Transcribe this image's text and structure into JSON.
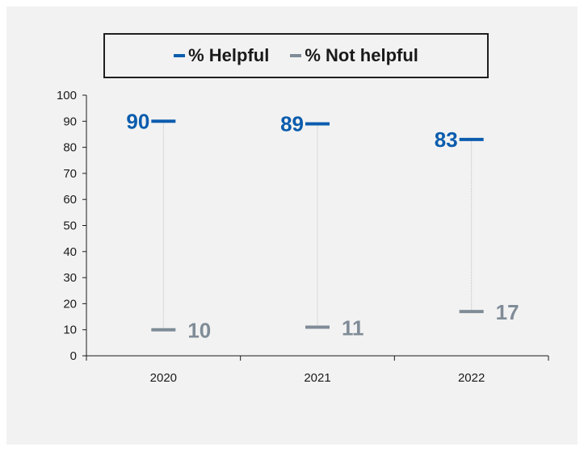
{
  "chart_data": {
    "type": "dot",
    "categories": [
      "2020",
      "2021",
      "2022"
    ],
    "series": [
      {
        "name": "% Helpful",
        "values": [
          90,
          89,
          83
        ],
        "color": "#0b5cad"
      },
      {
        "name": "% Not helpful",
        "values": [
          10,
          11,
          17
        ],
        "color": "#7f8c97"
      }
    ],
    "ylim": [
      0,
      100
    ],
    "yticks": [
      0,
      10,
      20,
      30,
      40,
      50,
      60,
      70,
      80,
      90,
      100
    ],
    "legend_position": "top",
    "grid": false,
    "connector_color": "#bfbfbf",
    "axis_color": "#1a1a1a"
  }
}
